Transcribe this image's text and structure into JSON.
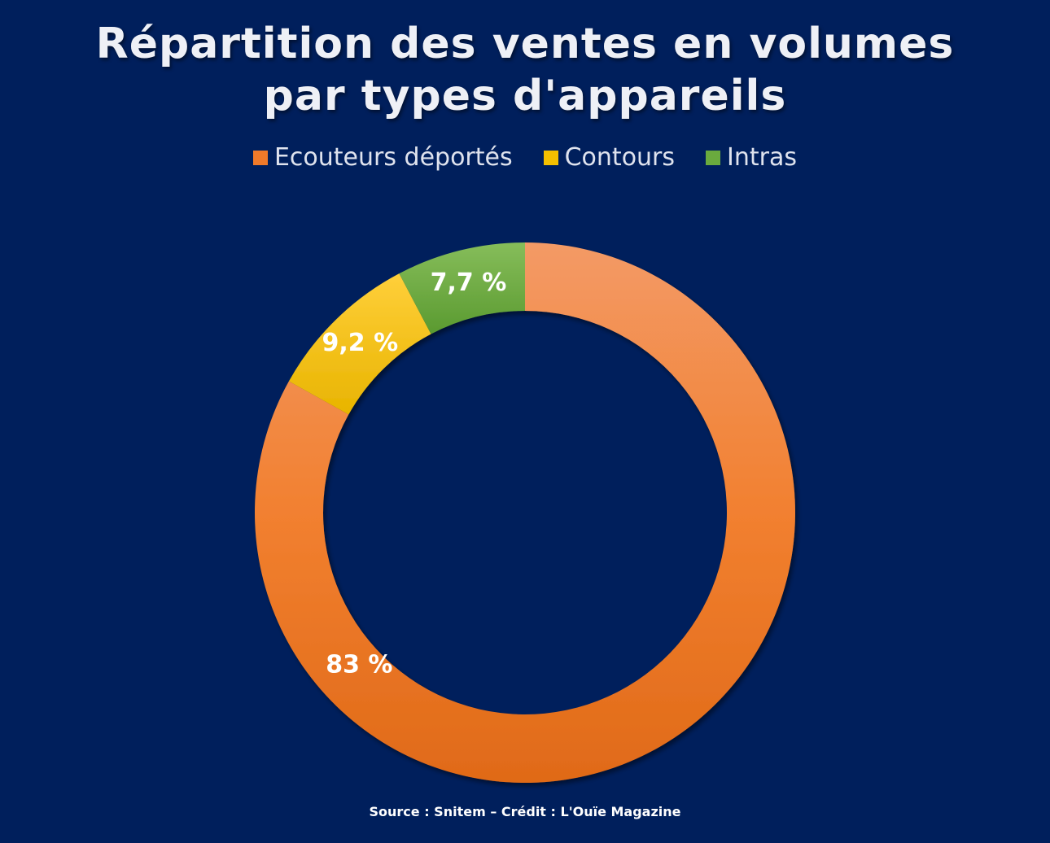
{
  "chart_data": {
    "type": "pie",
    "title_lines": [
      "Répartition des ventes en volumes",
      "par types d'appareils"
    ],
    "categories": [
      "Ecouteurs déportés",
      "Contours",
      "Intras"
    ],
    "values": [
      83,
      9.2,
      7.7
    ],
    "data_labels": [
      "83 %",
      "9,2 %",
      "7,7 %"
    ],
    "colors": [
      "#f07a2a",
      "#f5c000",
      "#6aaa3e"
    ],
    "legend_position": "top",
    "donut": true,
    "grid": false
  },
  "source_text": "Source : Snitem – Crédit : L'Ouïe Magazine"
}
